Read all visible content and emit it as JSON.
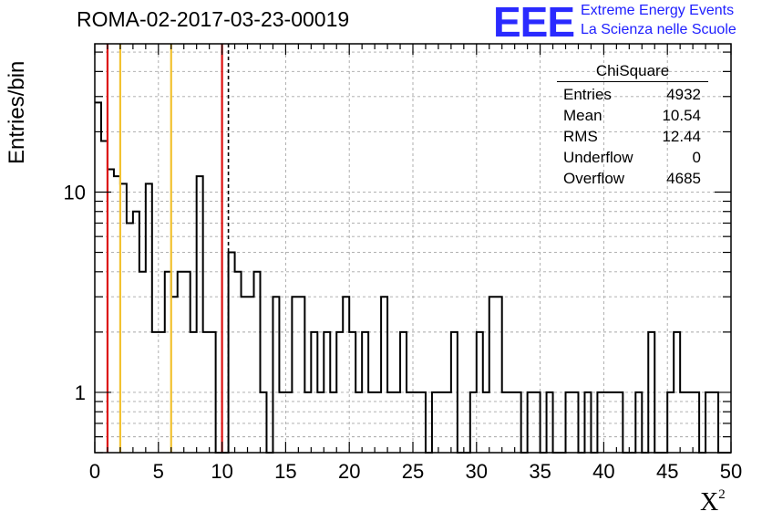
{
  "title": "ROMA-02-2017-03-23-00019",
  "logo": {
    "mark": "EEE",
    "line1": "Extreme Energy Events",
    "line2": "La Scienza nelle Scuole",
    "color": "#2a2aff"
  },
  "stats": {
    "title": "ChiSquare",
    "rows": [
      {
        "label": "Entries",
        "value": "4932"
      },
      {
        "label": "Mean",
        "value": "10.54"
      },
      {
        "label": "RMS",
        "value": "12.44"
      },
      {
        "label": "Underflow",
        "value": "0"
      },
      {
        "label": "Overflow",
        "value": "4685"
      }
    ]
  },
  "chart_data": {
    "type": "histogram",
    "title": "ROMA-02-2017-03-23-00019",
    "xlabel": "X",
    "xlabel_superscript": "2",
    "ylabel": "Entries/bin",
    "xlim": [
      0,
      50
    ],
    "ylim": [
      0.5,
      55
    ],
    "yscale": "log",
    "grid": true,
    "bin_width": 0.5,
    "x_ticks": [
      "0",
      "5",
      "10",
      "15",
      "20",
      "25",
      "30",
      "35",
      "40",
      "45",
      "50"
    ],
    "y_ticks": [
      "1",
      "10"
    ],
    "values": [
      28,
      18,
      13,
      12,
      11,
      7,
      8,
      4,
      11,
      2,
      2,
      4,
      3,
      4,
      4,
      2,
      12,
      2,
      2,
      0,
      0,
      5,
      4,
      3,
      3,
      4,
      1,
      0,
      3,
      1,
      1,
      3,
      3,
      1,
      2,
      1,
      2,
      1,
      2,
      3,
      2,
      1,
      2,
      1,
      1,
      3,
      1,
      1,
      2,
      1,
      1,
      1,
      0,
      1,
      1,
      1,
      2,
      0,
      0,
      1,
      2,
      1,
      3,
      3,
      1,
      1,
      1,
      0,
      1,
      1,
      0,
      1,
      0,
      0,
      1,
      1,
      0,
      1,
      0,
      1,
      1,
      1,
      1,
      0,
      0,
      1,
      0,
      2,
      0,
      0,
      1,
      2,
      1,
      1,
      1,
      0,
      1,
      1,
      0,
      0
    ],
    "vlines": [
      {
        "x": 1.0,
        "color": "#dd1111",
        "style": "solid"
      },
      {
        "x": 2.0,
        "color": "#f2c230",
        "style": "solid"
      },
      {
        "x": 6.0,
        "color": "#f2c230",
        "style": "solid"
      },
      {
        "x": 10.0,
        "color": "#dd1111",
        "style": "solid"
      },
      {
        "x": 10.5,
        "color": "#000000",
        "style": "dashed"
      }
    ]
  }
}
